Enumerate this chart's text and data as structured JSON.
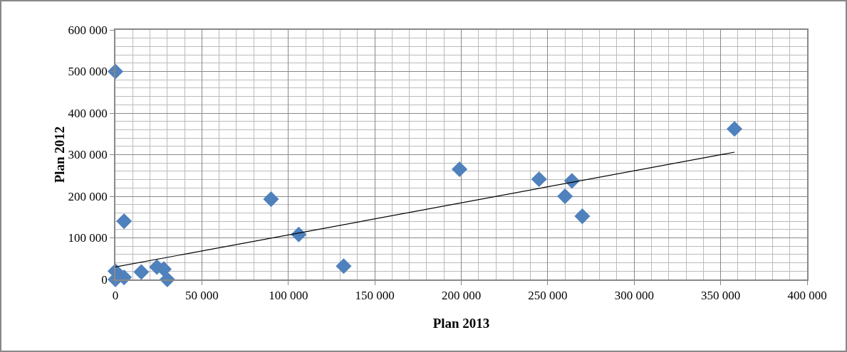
{
  "chart_data": {
    "type": "scatter",
    "xlabel": "Plan 2013",
    "ylabel": "Plan 2012",
    "series": [
      {
        "color": "#4f81bd",
        "marker": "diamond",
        "x": [
          0,
          0,
          0,
          5000,
          5000,
          15000,
          24000,
          28000,
          30000,
          90000,
          106000,
          132000,
          199000,
          245000,
          260000,
          264000,
          270000,
          358000
        ],
        "values": [
          500000,
          20000,
          0,
          140000,
          5000,
          18000,
          30000,
          25000,
          0,
          193000,
          108000,
          32000,
          265000,
          241000,
          200000,
          237000,
          152000,
          362000
        ]
      },
      {
        "type": "line",
        "color": "#000000",
        "marker": "none",
        "x": [
          0,
          358000
        ],
        "values": [
          30000,
          306000
        ]
      }
    ],
    "xlim": [
      0,
      400000
    ],
    "ylim": [
      0,
      600000
    ],
    "xticks": [
      0,
      {
        "value": 50000,
        "label": "50 000"
      },
      {
        "value": 100000,
        "label": "100 000"
      },
      {
        "value": 150000,
        "label": "150 000"
      },
      {
        "value": 200000,
        "label": "200 000"
      },
      {
        "value": 250000,
        "label": "250 000"
      },
      {
        "value": 300000,
        "label": "300 000"
      },
      {
        "value": 350000,
        "label": "350 000"
      },
      {
        "value": 400000,
        "label": "400 000"
      }
    ],
    "yticks": [
      0,
      {
        "value": 100000,
        "label": "100 000"
      },
      {
        "value": 200000,
        "label": "200 000"
      },
      {
        "value": 300000,
        "label": "300 000"
      },
      {
        "value": 400000,
        "label": "400 000"
      },
      {
        "value": 500000,
        "label": "500 000"
      },
      {
        "value": 600000,
        "label": "600 000"
      }
    ],
    "grid": true,
    "legend": false
  }
}
